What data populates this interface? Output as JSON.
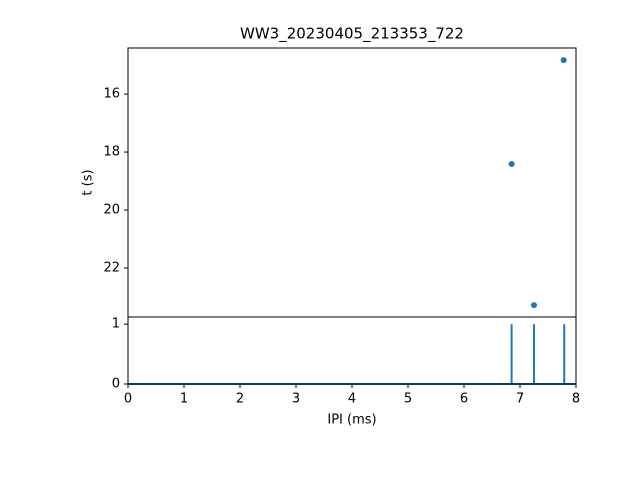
{
  "chart_data": [
    {
      "type": "scatter",
      "title": "WW3_20230405_213353_722",
      "ylabel": "t (s)",
      "x": [
        6.85,
        7.25,
        7.78
      ],
      "values": [
        18.41,
        23.28,
        14.83
      ],
      "color": "#1f77b4",
      "xlim": [
        0,
        8
      ],
      "ylim": [
        23.69,
        14.41
      ],
      "yticks": [
        16,
        18,
        20,
        22
      ]
    },
    {
      "type": "stem",
      "xlabel": "IPI (ms)",
      "x": [
        6.85,
        7.25,
        7.79
      ],
      "values": [
        1,
        1,
        1
      ],
      "color": "#1f77b4",
      "xlim": [
        0,
        8
      ],
      "xticks": [
        0,
        1,
        2,
        3,
        4,
        5,
        6,
        7,
        8
      ],
      "ylim": [
        0,
        1.12
      ],
      "yticks": [
        0,
        1
      ]
    }
  ]
}
